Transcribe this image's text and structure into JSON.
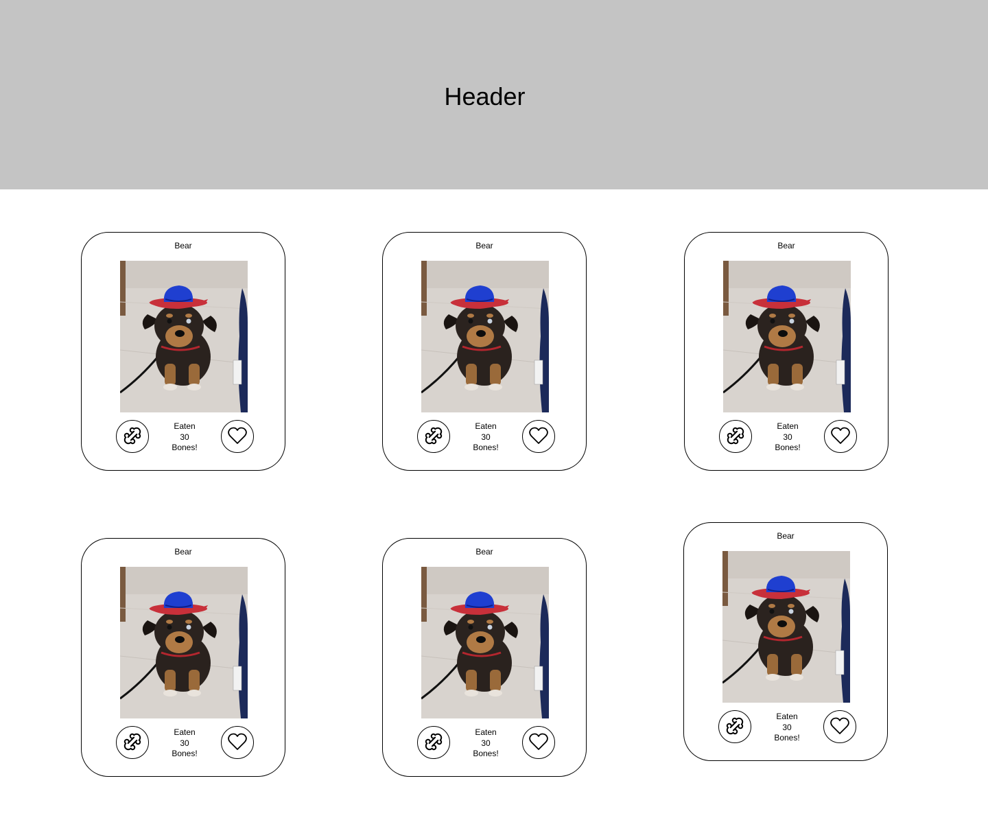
{
  "header": {
    "title": "Header"
  },
  "cards": [
    {
      "name": "Bear",
      "eaten_line1": "Eaten",
      "eaten_count": "30",
      "eaten_line3": "Bones!",
      "photo_icon": "dog-in-cowboy-hat-photo",
      "feed_icon": "bone-icon",
      "like_icon": "heart-icon"
    },
    {
      "name": "Bear",
      "eaten_line1": "Eaten",
      "eaten_count": "30",
      "eaten_line3": "Bones!",
      "photo_icon": "dog-in-cowboy-hat-photo",
      "feed_icon": "bone-icon",
      "like_icon": "heart-icon"
    },
    {
      "name": "Bear",
      "eaten_line1": "Eaten",
      "eaten_count": "30",
      "eaten_line3": "Bones!",
      "photo_icon": "dog-in-cowboy-hat-photo",
      "feed_icon": "bone-icon",
      "like_icon": "heart-icon"
    },
    {
      "name": "Bear",
      "eaten_line1": "Eaten",
      "eaten_count": "30",
      "eaten_line3": "Bones!",
      "photo_icon": "dog-in-cowboy-hat-photo",
      "feed_icon": "bone-icon",
      "like_icon": "heart-icon"
    },
    {
      "name": "Bear",
      "eaten_line1": "Eaten",
      "eaten_count": "30",
      "eaten_line3": "Bones!",
      "photo_icon": "dog-in-cowboy-hat-photo",
      "feed_icon": "bone-icon",
      "like_icon": "heart-icon"
    },
    {
      "name": "Bear",
      "eaten_line1": "Eaten",
      "eaten_count": "30",
      "eaten_line3": "Bones!",
      "photo_icon": "dog-in-cowboy-hat-photo",
      "feed_icon": "bone-icon",
      "like_icon": "heart-icon"
    }
  ],
  "colors": {
    "header_bg": "#c4c4c4",
    "hat_crown": "#1f3fd0",
    "hat_brim": "#c8303a",
    "floor": "#d9d4cf"
  }
}
